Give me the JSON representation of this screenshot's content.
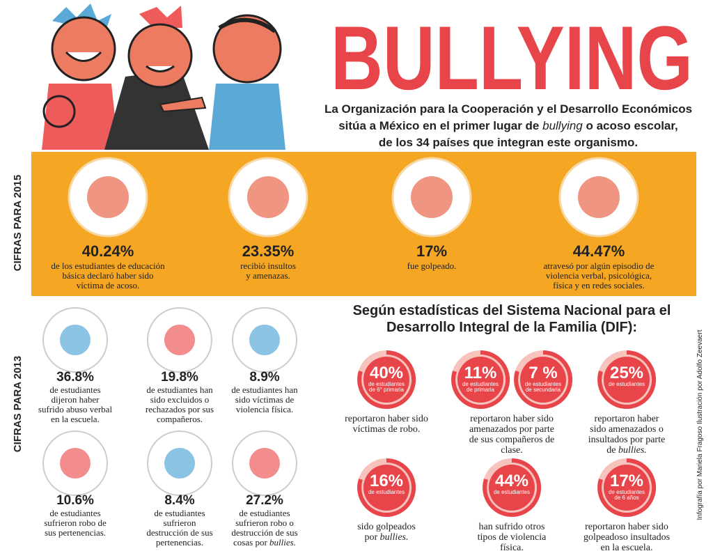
{
  "header": {
    "title": "BULLYING",
    "subtitle_lines": [
      [
        "La Organización para la Cooperación y el Desarrollo Económicos"
      ],
      [
        "sitúa a México en el primer lugar de ",
        "bullying",
        " o acoso escolar,"
      ],
      [
        "de los 34 países que integran este organismo."
      ]
    ]
  },
  "section_2015": {
    "label": "CIFRAS PARA 2015",
    "items": [
      {
        "value": "40.24%",
        "lines": [
          [
            "de los estudiantes de educación"
          ],
          [
            "básica declaró haber sido"
          ],
          [
            "víctima de acoso."
          ]
        ]
      },
      {
        "value": "23.35%",
        "lines": [
          [
            "recibió insultos"
          ],
          [
            "y amenazas."
          ]
        ]
      },
      {
        "value": "17%",
        "lines": [
          [
            "fue golpeado."
          ]
        ]
      },
      {
        "value": "44.47%",
        "lines": [
          [
            "atravesó por algún episodio de"
          ],
          [
            "violencia verbal, psicológica,"
          ],
          [
            "física y en redes sociales."
          ]
        ]
      }
    ]
  },
  "section_2013": {
    "label": "CIFRAS PARA 2013",
    "items": [
      {
        "value": "36.8%",
        "lines": [
          [
            "de estudiantes"
          ],
          [
            "dijeron haber"
          ],
          [
            "sufrido abuso verbal"
          ],
          [
            "en la escuela."
          ]
        ]
      },
      {
        "value": "19.8%",
        "lines": [
          [
            "de estudiantes han"
          ],
          [
            "sido excluidos o"
          ],
          [
            "rechazados por sus"
          ],
          [
            "compañeros."
          ]
        ]
      },
      {
        "value": "8.9%",
        "lines": [
          [
            "de estudiantes han"
          ],
          [
            "sido víctimas de"
          ],
          [
            "violencia física."
          ]
        ]
      },
      {
        "value": "10.6%",
        "lines": [
          [
            "de estudiantes"
          ],
          [
            "sufrieron robo de"
          ],
          [
            "sus pertenencias."
          ]
        ]
      },
      {
        "value": "8.4%",
        "lines": [
          [
            "de estudiantes"
          ],
          [
            "sufrieron"
          ],
          [
            "destrucción de sus"
          ],
          [
            "pertenencias."
          ]
        ]
      },
      {
        "value": "27.2%",
        "lines": [
          [
            "de estudiantes"
          ],
          [
            "sufrieron robo o"
          ],
          [
            "destrucción de sus"
          ],
          [
            "cosas por ",
            "bullies."
          ]
        ]
      }
    ]
  },
  "dif": {
    "heading_lines": [
      "Según estadísticas del Sistema Nacional para el",
      "Desarrollo Integral de la Familia (DIF):"
    ],
    "items": [
      {
        "donuts": [
          {
            "value": "40%",
            "sub": [
              "de estudiantes",
              "de 6° primaria"
            ]
          }
        ],
        "lines": [
          [
            "reportaron haber sido"
          ],
          [
            "víctimas de robo."
          ]
        ]
      },
      {
        "donuts": [
          {
            "value": "11%",
            "sub": [
              "de estudiantes",
              "de primaria"
            ]
          },
          {
            "value": "7 %",
            "sub": [
              "de estudiantes",
              "de secundaria"
            ]
          }
        ],
        "lines": [
          [
            "reportaron haber sido"
          ],
          [
            "amenazados por parte"
          ],
          [
            "de sus compañeros de"
          ],
          [
            "clase."
          ]
        ]
      },
      {
        "donuts": [
          {
            "value": "25%",
            "sub": [
              "de estudiantes"
            ]
          }
        ],
        "lines": [
          [
            "reportaron haber"
          ],
          [
            "sido amenazados o"
          ],
          [
            "insultados por parte"
          ],
          [
            "de ",
            "bullies."
          ]
        ]
      },
      {
        "donuts": [
          {
            "value": "16%",
            "sub": [
              "de estudiantes"
            ]
          }
        ],
        "lines": [
          [
            "sido golpeados"
          ],
          [
            "por ",
            "bullies."
          ]
        ]
      },
      {
        "donuts": [
          {
            "value": "44%",
            "sub": [
              "de estudiantes"
            ]
          }
        ],
        "lines": [
          [
            "han sufrido otros"
          ],
          [
            "tipos de violencia"
          ],
          [
            "física."
          ]
        ]
      },
      {
        "donuts": [
          {
            "value": "17%",
            "sub": [
              "de estudiantes",
              "de 6 años"
            ]
          }
        ],
        "lines": [
          [
            "reportaron haber sido"
          ],
          [
            "golpeadoso insultados"
          ],
          [
            "en la escuela."
          ]
        ]
      }
    ]
  },
  "credit": "Infografía por Mariela Fragoso Ilustración por Adolfo Zeevaert"
}
